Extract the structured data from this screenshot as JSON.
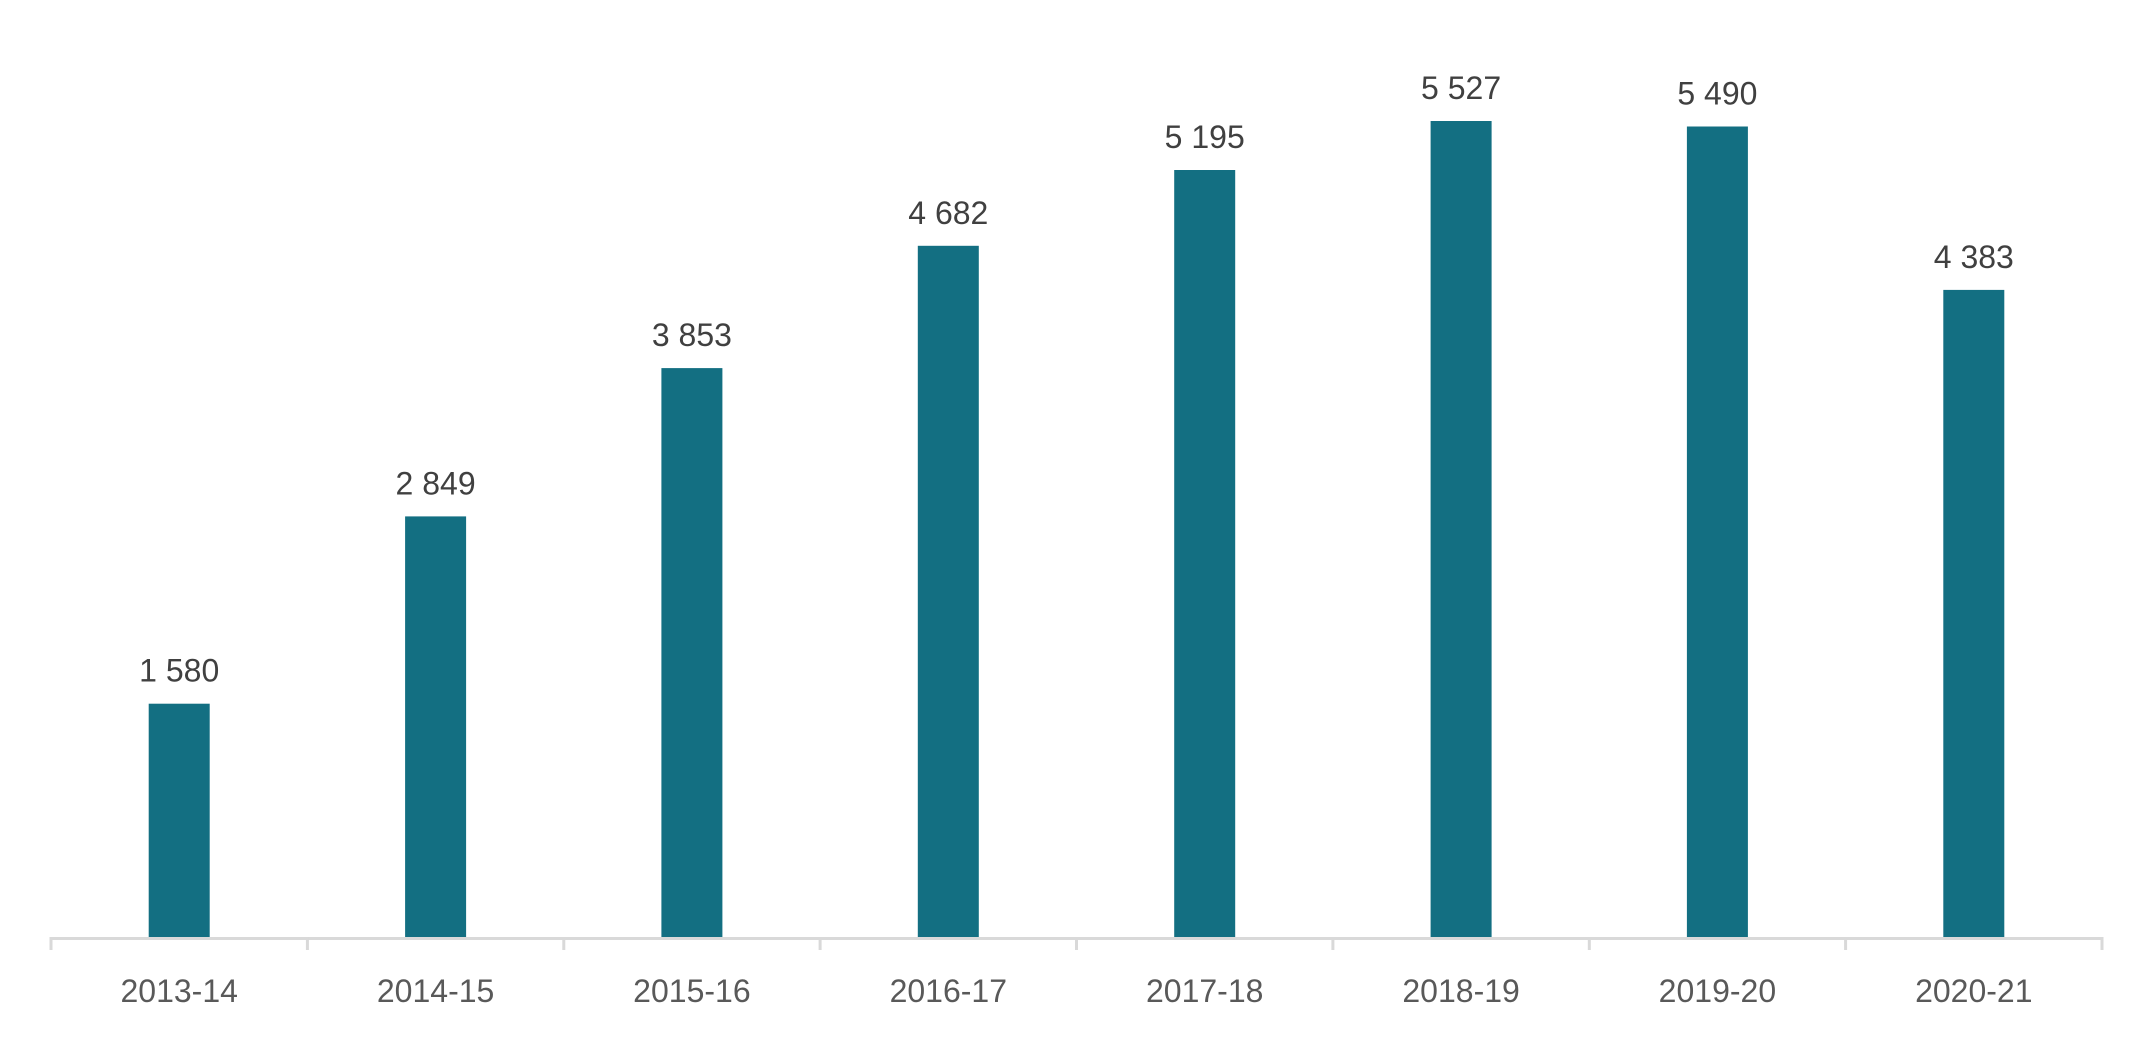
{
  "chart_data": {
    "type": "bar",
    "title": "",
    "xlabel": "",
    "ylabel": "",
    "categories": [
      "2013-14",
      "2014-15",
      "2015-16",
      "2016-17",
      "2017-18",
      "2018-19",
      "2019-20",
      "2020-21"
    ],
    "values": [
      1580,
      2849,
      3853,
      4682,
      5195,
      5527,
      5490,
      4383
    ],
    "value_labels": [
      "1 580",
      "2 849",
      "3 853",
      "4 682",
      "5 195",
      "5 527",
      "5 490",
      "4 383"
    ],
    "ylim": [
      0,
      5527
    ],
    "grid": false,
    "legend": "none",
    "colors": {
      "bar": "#136F82",
      "axis": "#D9D9D9",
      "data_label": "#404040",
      "tick_label": "#595959"
    }
  }
}
